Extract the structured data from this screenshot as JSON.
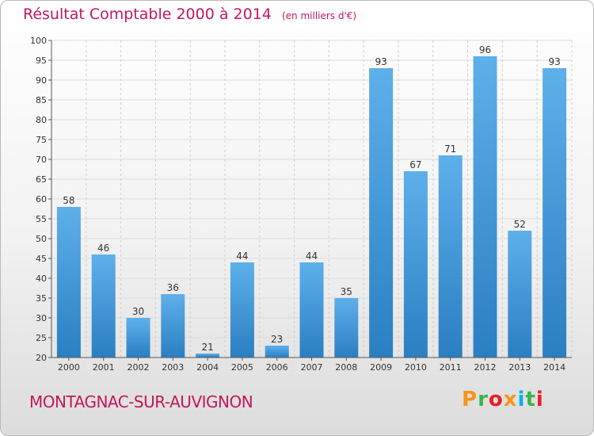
{
  "header": {
    "title": "Résultat Comptable 2000 à 2014",
    "subtitle": "(en milliers d'€)"
  },
  "footer": {
    "town": "MONTAGNAC-SUR-AUVIGNON",
    "logo_text": "Proxiti",
    "logo_colors": [
      "#f7941d",
      "#39b54a",
      "#ed1c24",
      "#f7941d",
      "#00aeef",
      "#39b54a",
      "#ed1c24"
    ]
  },
  "colors": {
    "title": "#c2185b",
    "bar_top": "#5eb0ea",
    "bar_bottom": "#2a7fc2",
    "grid": "#dcdcdc"
  },
  "chart_data": {
    "type": "bar",
    "categories": [
      "2000",
      "2001",
      "2002",
      "2003",
      "2004",
      "2005",
      "2006",
      "2007",
      "2008",
      "2009",
      "2010",
      "2011",
      "2012",
      "2013",
      "2014"
    ],
    "values": [
      58,
      46,
      30,
      36,
      21,
      44,
      23,
      44,
      35,
      93,
      67,
      71,
      96,
      52,
      93
    ],
    "ylim": [
      20,
      100
    ],
    "yticks": [
      20,
      25,
      30,
      35,
      40,
      45,
      50,
      55,
      60,
      65,
      70,
      75,
      80,
      85,
      90,
      95,
      100
    ],
    "grid": true
  }
}
